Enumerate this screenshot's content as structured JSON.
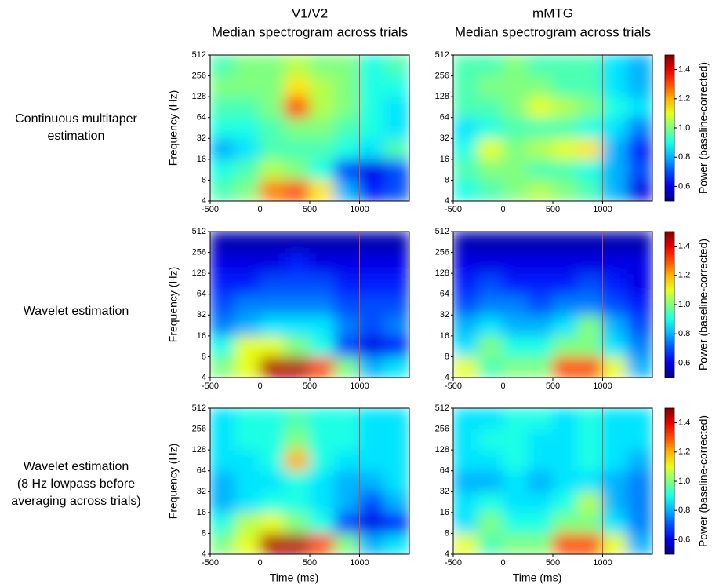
{
  "column_titles": [
    {
      "region": "V1/V2",
      "subtitle": "Median spectrogram across trials"
    },
    {
      "region": "mMTG",
      "subtitle": "Median spectrogram across trials"
    }
  ],
  "row_labels": [
    [
      "Continuous multitaper",
      "estimation"
    ],
    [
      "Wavelet estimation"
    ],
    [
      "Wavelet estimation",
      "(8 Hz lowpass before",
      "averaging across trials)"
    ]
  ],
  "chart_data": [
    {
      "type": "heatmap",
      "ylabel": "Frequency (Hz)",
      "y_scale": "log2",
      "xlim": [
        -500,
        1500
      ],
      "xticks": [
        -500,
        0,
        500,
        1000
      ],
      "ylim": [
        4,
        512
      ],
      "yticks": [
        4,
        8,
        16,
        32,
        64,
        128,
        256,
        512
      ],
      "x_edges": [
        -500,
        -250,
        0,
        250,
        500,
        750,
        1000,
        1250,
        1500
      ],
      "y_edges": [
        4,
        8,
        16,
        32,
        64,
        128,
        256,
        512
      ],
      "markers": [
        0,
        1000
      ],
      "marker_color": "#c0504d",
      "clim": [
        0.5,
        1.5
      ],
      "values": [
        [
          0.95,
          1.0,
          1.25,
          1.3,
          1.15,
          0.8,
          0.65,
          0.7
        ],
        [
          0.9,
          0.95,
          1.05,
          1.0,
          0.9,
          0.7,
          0.6,
          0.7
        ],
        [
          0.8,
          0.85,
          0.95,
          0.95,
          0.95,
          0.9,
          0.85,
          0.95
        ],
        [
          0.9,
          0.9,
          0.95,
          1.0,
          1.0,
          0.95,
          0.9,
          0.85
        ],
        [
          0.95,
          0.95,
          1.0,
          1.3,
          1.05,
          1.0,
          0.9,
          0.85
        ],
        [
          1.0,
          1.0,
          1.0,
          1.15,
          1.05,
          1.0,
          0.9,
          0.9
        ],
        [
          0.95,
          1.0,
          1.0,
          1.05,
          1.0,
          1.0,
          0.9,
          0.95
        ]
      ]
    },
    {
      "type": "heatmap",
      "y_scale": "log2",
      "xlim": [
        -500,
        1500
      ],
      "xticks": [
        -500,
        0,
        500,
        1000
      ],
      "ylim": [
        4,
        512
      ],
      "yticks": [
        4,
        8,
        16,
        32,
        64,
        128,
        256,
        512
      ],
      "x_edges": [
        -500,
        -250,
        0,
        250,
        500,
        750,
        1000,
        1250,
        1500
      ],
      "y_edges": [
        4,
        8,
        16,
        32,
        64,
        128,
        256,
        512
      ],
      "markers": [
        0,
        1000
      ],
      "marker_color": "#c0504d",
      "clim": [
        0.5,
        1.5
      ],
      "colorbar": {
        "label": "Power (baseline-corrected)",
        "ticks": [
          0.6,
          0.8,
          {
            "value": 1,
            "label": "1.0"
          },
          1.2,
          1.4
        ]
      },
      "values": [
        [
          0.9,
          0.95,
          1.0,
          1.05,
          1.0,
          0.95,
          0.8,
          0.6
        ],
        [
          0.95,
          1.0,
          1.0,
          0.95,
          0.95,
          0.9,
          0.8,
          0.7
        ],
        [
          0.9,
          1.1,
          1.0,
          1.05,
          1.1,
          1.15,
          0.8,
          0.65
        ],
        [
          0.85,
          0.9,
          0.95,
          0.95,
          0.95,
          0.9,
          0.85,
          0.75
        ],
        [
          0.95,
          0.95,
          1.0,
          1.1,
          1.05,
          1.0,
          0.9,
          0.85
        ],
        [
          0.95,
          1.0,
          1.0,
          1.0,
          0.95,
          0.95,
          0.85,
          0.8
        ],
        [
          0.95,
          0.95,
          1.0,
          0.95,
          0.95,
          0.95,
          0.85,
          0.8
        ]
      ]
    },
    {
      "type": "heatmap",
      "ylabel": "Frequency (Hz)",
      "y_scale": "log2",
      "xlim": [
        -500,
        1500
      ],
      "xticks": [
        -500,
        0,
        500,
        1000
      ],
      "ylim": [
        4,
        512
      ],
      "yticks": [
        4,
        8,
        16,
        32,
        64,
        128,
        256,
        512
      ],
      "x_edges": [
        -500,
        -250,
        0,
        250,
        500,
        750,
        1000,
        1250,
        1500
      ],
      "y_edges": [
        4,
        8,
        16,
        32,
        64,
        128,
        256,
        512
      ],
      "markers": [
        0,
        1000
      ],
      "marker_color": "#c0504d",
      "clim": [
        0.5,
        1.5
      ],
      "values": [
        [
          1.0,
          1.1,
          1.45,
          1.45,
          1.3,
          1.0,
          0.8,
          0.85
        ],
        [
          0.9,
          1.1,
          1.1,
          1.0,
          0.9,
          0.7,
          0.6,
          0.65
        ],
        [
          0.75,
          0.8,
          0.85,
          0.85,
          0.85,
          0.75,
          0.7,
          0.75
        ],
        [
          0.7,
          0.75,
          0.75,
          0.75,
          0.75,
          0.7,
          0.7,
          0.7
        ],
        [
          0.65,
          0.65,
          0.7,
          0.7,
          0.7,
          0.65,
          0.65,
          0.65
        ],
        [
          0.6,
          0.6,
          0.6,
          0.65,
          0.6,
          0.6,
          0.6,
          0.6
        ],
        [
          0.55,
          0.55,
          0.55,
          0.55,
          0.55,
          0.55,
          0.55,
          0.55
        ]
      ]
    },
    {
      "type": "heatmap",
      "y_scale": "log2",
      "xlim": [
        -500,
        1500
      ],
      "xticks": [
        -500,
        0,
        500,
        1000
      ],
      "ylim": [
        4,
        512
      ],
      "yticks": [
        4,
        8,
        16,
        32,
        64,
        128,
        256,
        512
      ],
      "x_edges": [
        -500,
        -250,
        0,
        250,
        500,
        750,
        1000,
        1250,
        1500
      ],
      "y_edges": [
        4,
        8,
        16,
        32,
        64,
        128,
        256,
        512
      ],
      "markers": [
        0,
        1000
      ],
      "marker_color": "#c0504d",
      "clim": [
        0.5,
        1.5
      ],
      "colorbar": {
        "label": "Power (baseline-corrected)",
        "ticks": [
          0.6,
          0.8,
          {
            "value": 1,
            "label": "1.0"
          },
          1.2,
          1.4
        ]
      },
      "values": [
        [
          1.1,
          0.95,
          1.0,
          1.0,
          1.3,
          1.3,
          1.1,
          0.8
        ],
        [
          0.85,
          1.0,
          0.9,
          0.9,
          1.0,
          1.0,
          0.85,
          0.75
        ],
        [
          0.8,
          0.85,
          0.8,
          0.8,
          0.85,
          1.0,
          0.8,
          0.7
        ],
        [
          0.7,
          0.75,
          0.75,
          0.7,
          0.75,
          0.75,
          0.7,
          0.65
        ],
        [
          0.65,
          0.7,
          0.65,
          0.65,
          0.65,
          0.7,
          0.65,
          0.6
        ],
        [
          0.6,
          0.6,
          0.6,
          0.6,
          0.6,
          0.6,
          0.6,
          0.6
        ],
        [
          0.55,
          0.55,
          0.55,
          0.55,
          0.55,
          0.55,
          0.55,
          0.55
        ]
      ]
    },
    {
      "type": "heatmap",
      "ylabel": "Frequency (Hz)",
      "xlabel": "Time (ms)",
      "y_scale": "log2",
      "xlim": [
        -500,
        1500
      ],
      "xticks": [
        -500,
        0,
        500,
        1000
      ],
      "ylim": [
        4,
        512
      ],
      "yticks": [
        4,
        8,
        16,
        32,
        64,
        128,
        256,
        512
      ],
      "x_edges": [
        -500,
        -250,
        0,
        250,
        500,
        750,
        1000,
        1250,
        1500
      ],
      "y_edges": [
        4,
        8,
        16,
        32,
        64,
        128,
        256,
        512
      ],
      "markers": [
        0,
        1000
      ],
      "marker_color": "#c0504d",
      "clim": [
        0.5,
        1.5
      ],
      "values": [
        [
          1.0,
          1.1,
          1.45,
          1.45,
          1.3,
          1.0,
          0.8,
          0.85
        ],
        [
          0.9,
          1.05,
          1.1,
          1.0,
          0.9,
          0.7,
          0.6,
          0.65
        ],
        [
          0.8,
          0.85,
          0.9,
          0.9,
          0.85,
          0.8,
          0.7,
          0.8
        ],
        [
          0.8,
          0.85,
          0.85,
          0.9,
          0.85,
          0.8,
          0.8,
          0.85
        ],
        [
          0.85,
          0.85,
          0.9,
          1.2,
          0.9,
          0.85,
          0.85,
          0.85
        ],
        [
          0.85,
          0.9,
          0.9,
          1.0,
          0.9,
          0.9,
          0.85,
          0.85
        ],
        [
          0.85,
          0.9,
          0.9,
          0.95,
          0.9,
          0.9,
          0.85,
          0.85
        ]
      ]
    },
    {
      "type": "heatmap",
      "xlabel": "Time (ms)",
      "y_scale": "log2",
      "xlim": [
        -500,
        1500
      ],
      "xticks": [
        -500,
        0,
        500,
        1000
      ],
      "ylim": [
        4,
        512
      ],
      "yticks": [
        4,
        8,
        16,
        32,
        64,
        128,
        256,
        512
      ],
      "x_edges": [
        -500,
        -250,
        0,
        250,
        500,
        750,
        1000,
        1250,
        1500
      ],
      "y_edges": [
        4,
        8,
        16,
        32,
        64,
        128,
        256,
        512
      ],
      "markers": [
        0,
        1000
      ],
      "marker_color": "#c0504d",
      "clim": [
        0.5,
        1.5
      ],
      "colorbar": {
        "label": "Power (baseline-corrected)",
        "ticks": [
          0.6,
          0.8,
          {
            "value": 1,
            "label": "1.0"
          },
          1.2,
          1.4
        ]
      },
      "values": [
        [
          1.1,
          0.95,
          1.0,
          1.0,
          1.3,
          1.3,
          1.1,
          0.8
        ],
        [
          0.85,
          1.0,
          0.9,
          0.9,
          1.0,
          1.0,
          0.85,
          0.75
        ],
        [
          0.85,
          0.9,
          0.85,
          0.85,
          0.9,
          1.05,
          0.8,
          0.75
        ],
        [
          0.8,
          0.8,
          0.85,
          0.8,
          0.85,
          0.85,
          0.8,
          0.75
        ],
        [
          0.85,
          0.85,
          0.9,
          0.85,
          0.85,
          0.9,
          0.85,
          0.8
        ],
        [
          0.85,
          0.9,
          0.9,
          0.85,
          0.85,
          0.9,
          0.85,
          0.85
        ],
        [
          0.85,
          0.85,
          0.9,
          0.9,
          0.85,
          0.9,
          0.85,
          0.85
        ]
      ]
    }
  ]
}
